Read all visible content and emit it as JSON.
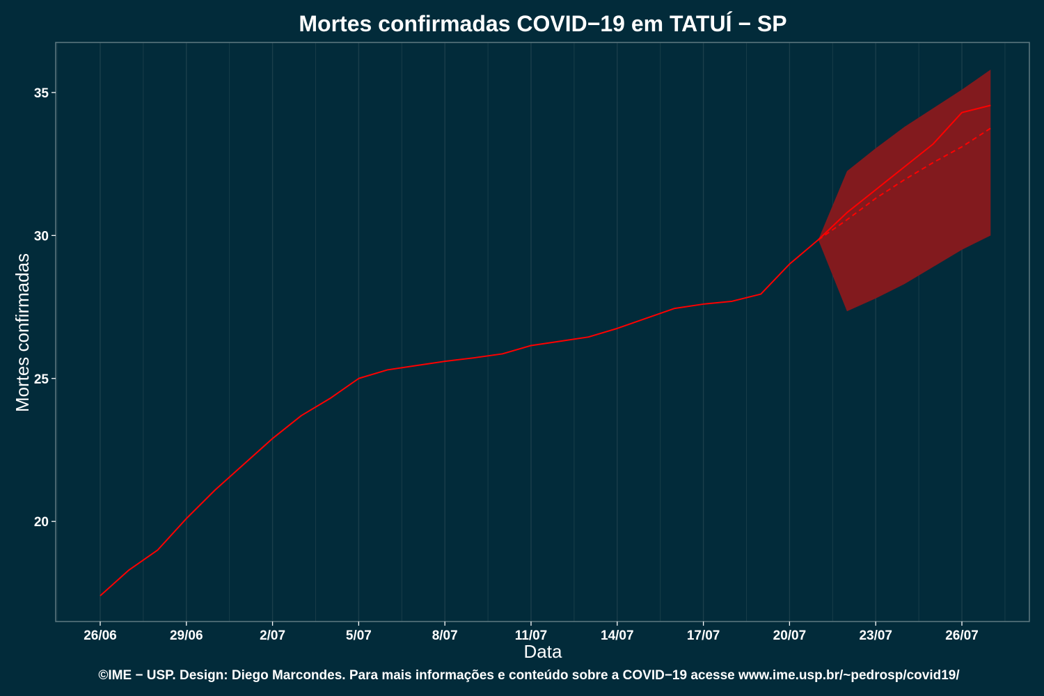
{
  "chart_data": {
    "type": "line",
    "title": "Mortes confirmadas COVID−19 em TATUÍ − SP",
    "xlabel": "Data",
    "ylabel": "Mortes confirmadas",
    "caption": "©IME − USP. Design: Diego Marcondes. Para mais informações e conteúdo sobre a COVID−19 acesse www.ime.usp.br/~pedrosp/covid19/",
    "x_tick_labels": [
      "26/06",
      "29/06",
      "2/07",
      "5/07",
      "8/07",
      "11/07",
      "14/07",
      "17/07",
      "20/07",
      "23/07",
      "26/07"
    ],
    "x_tick_days": [
      0,
      3,
      6,
      9,
      12,
      15,
      18,
      21,
      24,
      27,
      30
    ],
    "y_ticks": [
      20,
      25,
      30,
      35
    ],
    "xlim_days": [
      -1.55,
      32.35
    ],
    "ylim": [
      16.5,
      36.75
    ],
    "grid": true,
    "series": [
      {
        "days": [
          0,
          1,
          2,
          3,
          4,
          5,
          6,
          7,
          8,
          9,
          10,
          11,
          12,
          13,
          14,
          15,
          16,
          17,
          18,
          19,
          20,
          21,
          22,
          23,
          24,
          25
        ],
        "values": [
          17.4,
          18.3,
          19.0,
          20.1,
          21.1,
          22.0,
          22.9,
          23.7,
          24.3,
          25.0,
          25.3,
          25.45,
          25.6,
          25.72,
          25.86,
          26.15,
          26.3,
          26.45,
          26.75,
          27.1,
          27.45,
          27.6,
          27.7,
          27.95,
          29.0,
          29.85
        ]
      },
      {
        "days": [
          25,
          26,
          27,
          28,
          29,
          30,
          31
        ],
        "values": [
          29.85,
          30.8,
          31.6,
          32.4,
          33.2,
          34.3,
          34.55
        ]
      },
      {
        "days": [
          25,
          26,
          27,
          28,
          29,
          30,
          31
        ],
        "values": [
          29.85,
          30.55,
          31.3,
          31.95,
          32.55,
          33.1,
          33.75
        ],
        "style": "dashed"
      }
    ],
    "band": {
      "days": [
        25,
        26,
        27,
        28,
        29,
        30,
        31
      ],
      "lower": [
        29.85,
        27.35,
        27.8,
        28.3,
        28.9,
        29.5,
        30.0
      ],
      "upper": [
        29.85,
        32.25,
        33.05,
        33.8,
        34.45,
        35.1,
        35.8
      ]
    },
    "colors": {
      "background": "#022b3a",
      "line": "#ff0000",
      "band": "#821a1e",
      "grid": "#1b3f4b",
      "frame": "#5f7a82"
    }
  }
}
